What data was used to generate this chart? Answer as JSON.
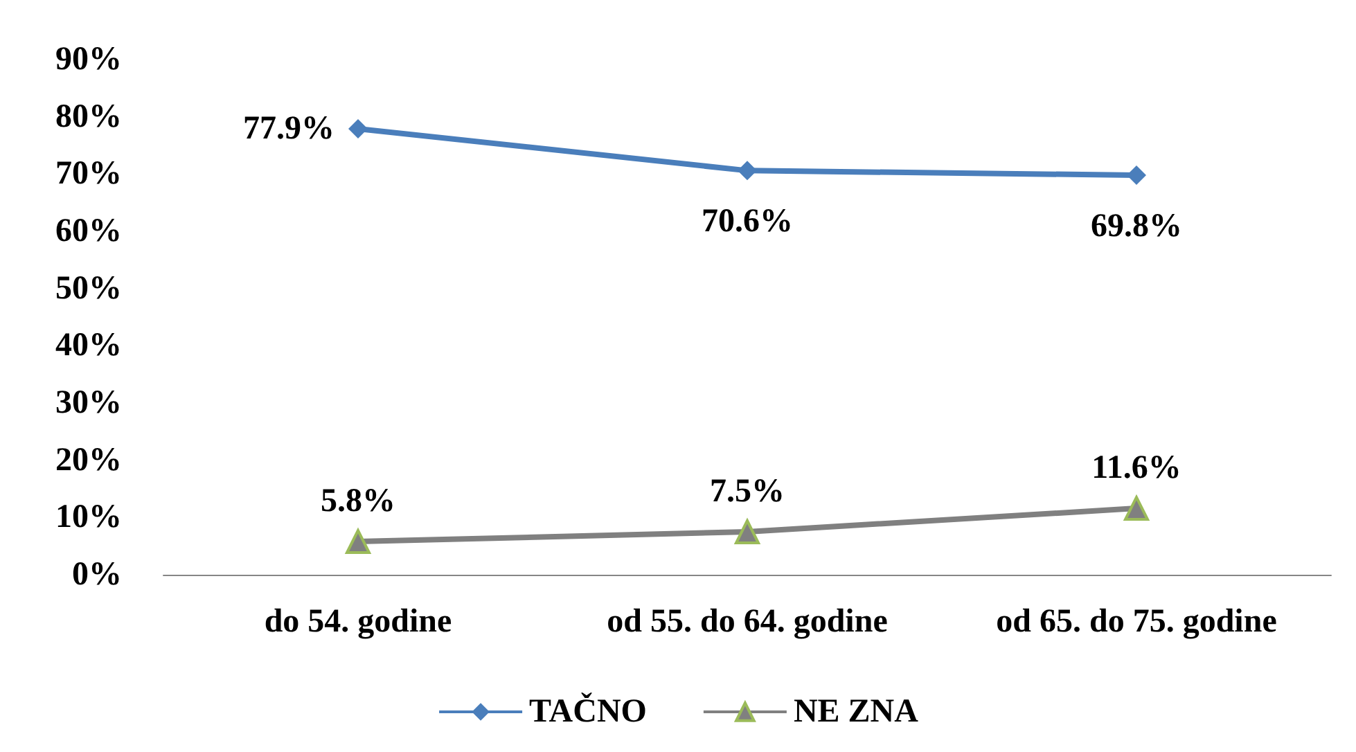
{
  "chart_data": {
    "type": "line",
    "categories": [
      "do 54. godine",
      "od 55. do 64. godine",
      "od 65. do 75. godine"
    ],
    "series": [
      {
        "name": "TAČNO",
        "color": "#4a7ebb",
        "marker": "diamond",
        "values": [
          77.9,
          70.6,
          69.8
        ],
        "value_labels": [
          "77.9%",
          "70.6%",
          "69.8%"
        ]
      },
      {
        "name": "NE ZNA",
        "color": "#808080",
        "marker": "triangle",
        "values": [
          5.8,
          7.5,
          11.6
        ],
        "value_labels": [
          "5.8%",
          "7.5%",
          "11.6%"
        ]
      }
    ],
    "ylim": [
      0,
      90
    ],
    "yticks": [
      {
        "value": 0,
        "label": "0%"
      },
      {
        "value": 10,
        "label": "10%"
      },
      {
        "value": 20,
        "label": "20%"
      },
      {
        "value": 30,
        "label": "30%"
      },
      {
        "value": 40,
        "label": "40%"
      },
      {
        "value": 50,
        "label": "50%"
      },
      {
        "value": 60,
        "label": "60%"
      },
      {
        "value": 70,
        "label": "70%"
      },
      {
        "value": 80,
        "label": "80%"
      },
      {
        "value": 90,
        "label": "90%"
      }
    ],
    "grid": false,
    "legend": "bottom"
  }
}
